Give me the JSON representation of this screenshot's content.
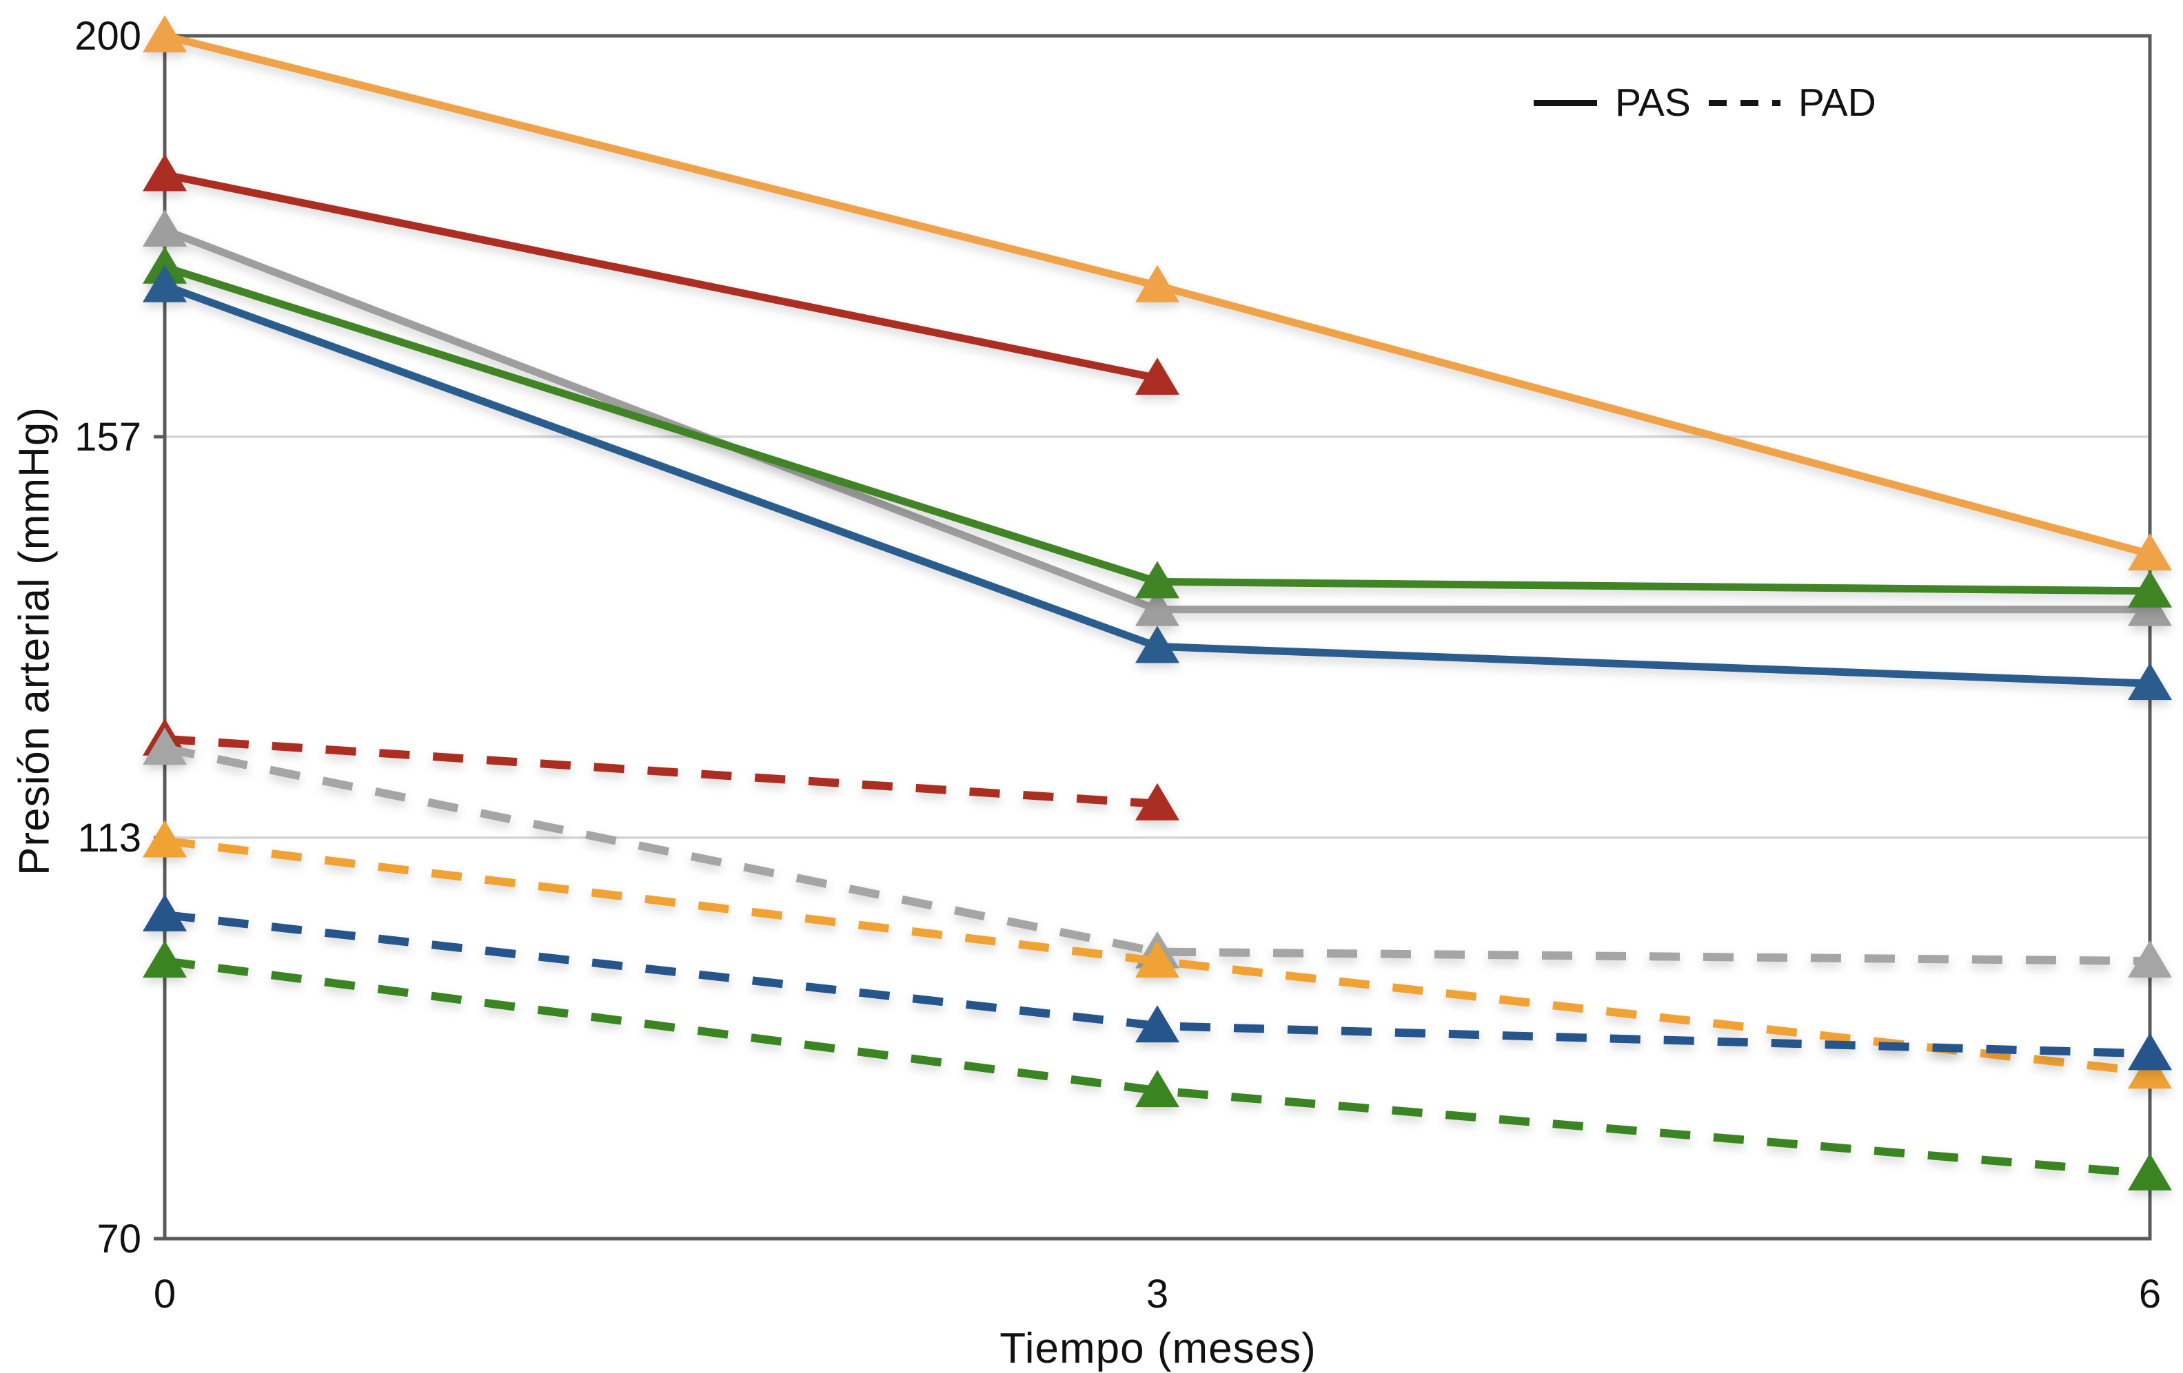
{
  "figure": {
    "background": "#ffffff",
    "frame_color": "#5a5a5a",
    "gridline_color": "#d9d9d9",
    "y_axis_title": "Presión arterial (mmHg)",
    "x_axis_title": "Tiempo (meses)",
    "legend": {
      "pas_label": "PAS",
      "pad_label": "PAD"
    }
  },
  "chart_data": {
    "type": "line",
    "title": "",
    "xlabel": "Tiempo (meses)",
    "ylabel": "Presión arterial (mmHg)",
    "x": [
      0,
      3,
      6
    ],
    "x_tick_labels": [
      "0",
      "3",
      "6"
    ],
    "y_ticks": [
      200,
      156.67,
      113.33,
      70
    ],
    "y_tick_labels": [
      "200",
      "157",
      "113",
      "70"
    ],
    "ylim": [
      70,
      200
    ],
    "xlim": [
      0,
      6
    ],
    "grid": "horizontal gridlines at 157 and 113 only",
    "legend_position": "top-right inside plot",
    "legend_entries": [
      {
        "label": "PAS",
        "style": "solid",
        "color": "#141414"
      },
      {
        "label": "PAD",
        "style": "dashed",
        "color": "#141414"
      }
    ],
    "marker": "triangle-up",
    "series": [
      {
        "name": "PAS-naranja",
        "group": "PAS",
        "style": "solid",
        "color": "#EFA246",
        "values": [
          200,
          173,
          144
        ]
      },
      {
        "name": "PAS-rojo",
        "group": "PAS",
        "style": "solid",
        "color": "#AC2F23",
        "values": [
          185,
          163,
          null
        ]
      },
      {
        "name": "PAS-gris",
        "group": "PAS",
        "style": "solid",
        "color": "#9E9E9E",
        "values": [
          179,
          138,
          138
        ]
      },
      {
        "name": "PAS-verde",
        "group": "PAS",
        "style": "solid",
        "color": "#3F8426",
        "values": [
          175,
          141,
          140
        ]
      },
      {
        "name": "PAS-azul",
        "group": "PAS",
        "style": "solid",
        "color": "#2B5C8D",
        "values": [
          173,
          134,
          130
        ]
      },
      {
        "name": "PAD-rojo",
        "group": "PAD",
        "style": "dashed",
        "color": "#AC2F23",
        "values": [
          124,
          117,
          null
        ]
      },
      {
        "name": "PAD-gris",
        "group": "PAD",
        "style": "dashed",
        "color": "#A5A5A5",
        "values": [
          123,
          101,
          100
        ]
      },
      {
        "name": "PAD-naranja",
        "group": "PAD",
        "style": "dashed",
        "color": "#F0A236",
        "values": [
          113,
          100,
          88
        ]
      },
      {
        "name": "PAD-azul",
        "group": "PAD",
        "style": "dashed",
        "color": "#26548B",
        "values": [
          105,
          93,
          90
        ]
      },
      {
        "name": "PAD-verde",
        "group": "PAD",
        "style": "dashed",
        "color": "#3B8424",
        "values": [
          100,
          86,
          77
        ]
      }
    ]
  }
}
